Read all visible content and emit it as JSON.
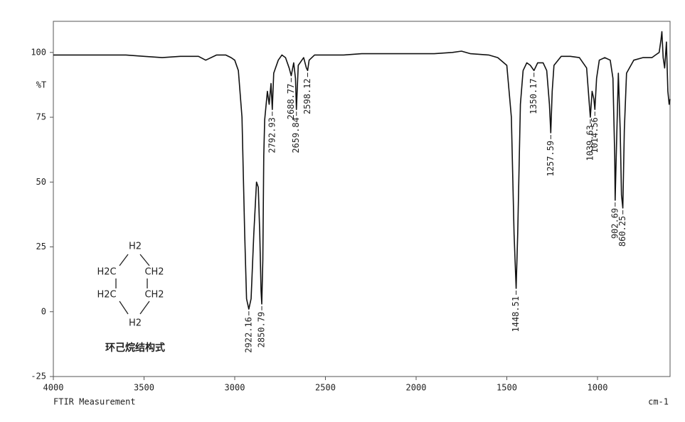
{
  "chart_data": {
    "type": "line",
    "y_label": "%T",
    "footer_left": "FTIR Measurement",
    "footer_right": "cm-1",
    "color": "#111111",
    "xlim": [
      4000,
      600
    ],
    "ylim": [
      -25,
      112
    ],
    "xticks": [
      4000,
      3500,
      3000,
      2500,
      2000,
      1500,
      1000
    ],
    "yticks": [
      -25,
      0,
      25,
      50,
      75,
      100
    ],
    "x": [
      4000,
      3900,
      3800,
      3700,
      3600,
      3500,
      3400,
      3300,
      3200,
      3160,
      3100,
      3050,
      3020,
      3000,
      2980,
      2960,
      2945,
      2935,
      2922.16,
      2910,
      2895,
      2880,
      2870,
      2862,
      2855,
      2850.79,
      2845,
      2840,
      2835,
      2820,
      2810,
      2800,
      2792.93,
      2785,
      2760,
      2740,
      2720,
      2700,
      2688.77,
      2675,
      2665,
      2659.84,
      2650,
      2620,
      2605,
      2598.12,
      2590,
      2560,
      2500,
      2400,
      2300,
      2200,
      2100,
      2000,
      1900,
      1800,
      1750,
      1700,
      1600,
      1550,
      1500,
      1475,
      1460,
      1448.51,
      1440,
      1425,
      1410,
      1390,
      1370,
      1350.17,
      1330,
      1300,
      1280,
      1265,
      1257.59,
      1250,
      1240,
      1200,
      1150,
      1100,
      1060,
      1045,
      1039.63,
      1030,
      1020,
      1014.56,
      1005,
      990,
      960,
      930,
      915,
      905,
      902.69,
      895,
      885,
      875,
      868,
      860.25,
      852,
      840,
      800,
      750,
      700,
      680,
      660,
      650,
      645,
      638,
      630,
      620,
      612,
      605,
      600
    ],
    "values": [
      99,
      99,
      99,
      99,
      99,
      98.5,
      98,
      98.5,
      98.5,
      97,
      99,
      99,
      98,
      97,
      93,
      75,
      30,
      5,
      1,
      5,
      30,
      50,
      48,
      30,
      8,
      3,
      20,
      60,
      74,
      85,
      80,
      88,
      78,
      92,
      97,
      99,
      98,
      94,
      91,
      96,
      90,
      78,
      95,
      98,
      94,
      93,
      97,
      99,
      99,
      99,
      99.5,
      99.5,
      99.5,
      99.5,
      99.5,
      100,
      100.5,
      99.5,
      99,
      98,
      95,
      75,
      30,
      9,
      30,
      80,
      93,
      96,
      95,
      93,
      96,
      96,
      93,
      80,
      69,
      85,
      95,
      98.5,
      98.5,
      98,
      94,
      80,
      75,
      85,
      82,
      78,
      90,
      97,
      98,
      97,
      90,
      60,
      43,
      65,
      92,
      70,
      45,
      40,
      70,
      92,
      97,
      98,
      98,
      99,
      100,
      105,
      108,
      98,
      94,
      104,
      85,
      80,
      82
    ],
    "peaks": [
      {
        "x": 2922.16,
        "y": 1
      },
      {
        "x": 2850.79,
        "y": 3
      },
      {
        "x": 2792.93,
        "y": 78
      },
      {
        "x": 2688.77,
        "y": 91
      },
      {
        "x": 2659.84,
        "y": 78
      },
      {
        "x": 2598.12,
        "y": 93
      },
      {
        "x": 1448.51,
        "y": 9
      },
      {
        "x": 1350.17,
        "y": 93
      },
      {
        "x": 1257.59,
        "y": 69
      },
      {
        "x": 1039.63,
        "y": 75
      },
      {
        "x": 1014.56,
        "y": 78
      },
      {
        "x": 902.69,
        "y": 43
      },
      {
        "x": 860.25,
        "y": 40
      }
    ]
  },
  "structure": {
    "labels": [
      "H2",
      "H2C",
      "CH2",
      "H2C",
      "CH2",
      "H2"
    ],
    "caption": "环己烷结构式"
  }
}
